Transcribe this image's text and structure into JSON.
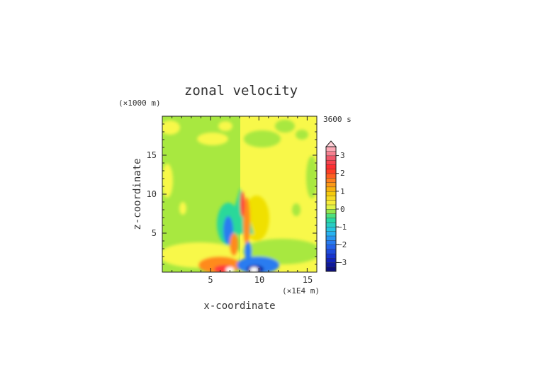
{
  "chart_data": {
    "type": "heatmap",
    "title": "zonal velocity",
    "xlabel": "x-coordinate",
    "ylabel": "z-coordinate",
    "x_unit": "(×1E4 m)",
    "y_unit": "(×1000 m)",
    "time_label": "3600 s",
    "xlim": [
      0,
      16
    ],
    "ylim": [
      0,
      20
    ],
    "x_ticks": [
      "5",
      "10",
      "15"
    ],
    "y_ticks": [
      "5",
      "10",
      "15"
    ],
    "colorbar": {
      "min": -3.5,
      "max": 3.5,
      "step": 0.25,
      "tick_labels": [
        "3",
        "2",
        "1",
        "0",
        "−1",
        "−2",
        "−3"
      ],
      "tick_values": [
        3,
        2,
        1,
        0,
        -1,
        -2,
        -3
      ],
      "extend_top": true
    },
    "colors": {
      "positive_strong": "#ff3a3a",
      "positive_mid": "#ff8a1e",
      "positive_weak": "#f0e000",
      "near_zero": "#f8f84a",
      "neutral": "#a8e840",
      "negative_weak": "#2cd89a",
      "negative_mid": "#2a7bf0",
      "negative_strong": "#0a20a0"
    },
    "features": [
      {
        "kind": "left_half_background",
        "value": -0.1,
        "x_range": [
          0,
          8
        ]
      },
      {
        "kind": "right_half_background",
        "value": 0.3,
        "x_range": [
          8,
          16
        ]
      },
      {
        "kind": "surface_maximum",
        "x": 7.0,
        "z": 0.3,
        "value": 3.5
      },
      {
        "kind": "surface_minimum",
        "x": 9.5,
        "z": 0.3,
        "value": -3.5
      },
      {
        "kind": "central_plume",
        "x": 8.0,
        "z_top": 10.5
      }
    ]
  }
}
